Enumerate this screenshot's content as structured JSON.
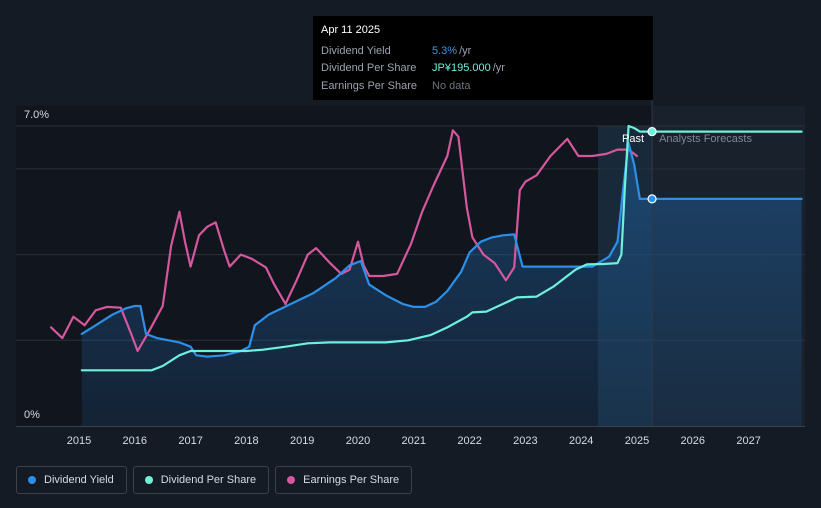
{
  "tooltip": {
    "date": "Apr 11 2025",
    "rows": [
      {
        "label": "Dividend Yield",
        "value": "5.3%",
        "unit": "/yr",
        "color": "#3b9ae8"
      },
      {
        "label": "Dividend Per Share",
        "value": "JP¥195.000",
        "unit": "/yr",
        "color": "#6ff0dc"
      },
      {
        "label": "Earnings Per Share",
        "value": "No data",
        "unit": "",
        "color": "#6b7480"
      }
    ]
  },
  "annotations": {
    "past": "Past",
    "forecast": "Analysts Forecasts"
  },
  "legend": [
    {
      "label": "Dividend Yield",
      "color": "#2d90e8"
    },
    {
      "label": "Dividend Per Share",
      "color": "#6ff0dc"
    },
    {
      "label": "Earnings Per Share",
      "color": "#d5579d"
    }
  ],
  "chart_data": {
    "type": "line",
    "xlim": [
      2014.4,
      2027.95
    ],
    "ylim": [
      0,
      7.0
    ],
    "y_tick_labels": [
      {
        "v": 7.0,
        "label": "7.0%"
      },
      {
        "v": 0,
        "label": "0%"
      }
    ],
    "x_ticks": [
      2015,
      2016,
      2017,
      2018,
      2019,
      2020,
      2021,
      2022,
      2023,
      2024,
      2025,
      2026,
      2027
    ],
    "gridlines": [
      2.0,
      4.0,
      6.0,
      7.0
    ],
    "forecast_start": 2024.3,
    "tooltip_x": 2025.27,
    "series": [
      {
        "name": "Dividend Yield",
        "color": "#2d90e8",
        "points": [
          [
            2015.05,
            2.15
          ],
          [
            2015.3,
            2.35
          ],
          [
            2015.6,
            2.6
          ],
          [
            2015.85,
            2.75
          ],
          [
            2016.0,
            2.8
          ],
          [
            2016.1,
            2.8
          ],
          [
            2016.2,
            2.15
          ],
          [
            2016.4,
            2.05
          ],
          [
            2016.8,
            1.95
          ],
          [
            2017.0,
            1.85
          ],
          [
            2017.1,
            1.65
          ],
          [
            2017.3,
            1.62
          ],
          [
            2017.6,
            1.65
          ],
          [
            2017.9,
            1.75
          ],
          [
            2018.05,
            1.85
          ],
          [
            2018.15,
            2.35
          ],
          [
            2018.4,
            2.6
          ],
          [
            2018.8,
            2.85
          ],
          [
            2019.2,
            3.1
          ],
          [
            2019.6,
            3.45
          ],
          [
            2019.85,
            3.75
          ],
          [
            2020.05,
            3.85
          ],
          [
            2020.2,
            3.3
          ],
          [
            2020.5,
            3.05
          ],
          [
            2020.8,
            2.85
          ],
          [
            2021.0,
            2.78
          ],
          [
            2021.2,
            2.78
          ],
          [
            2021.4,
            2.9
          ],
          [
            2021.6,
            3.15
          ],
          [
            2021.85,
            3.6
          ],
          [
            2022.0,
            4.05
          ],
          [
            2022.2,
            4.3
          ],
          [
            2022.4,
            4.4
          ],
          [
            2022.6,
            4.45
          ],
          [
            2022.8,
            4.47
          ],
          [
            2022.95,
            3.72
          ],
          [
            2023.3,
            3.72
          ],
          [
            2023.8,
            3.72
          ],
          [
            2024.2,
            3.72
          ],
          [
            2024.5,
            3.95
          ],
          [
            2024.65,
            4.3
          ],
          [
            2024.75,
            5.5
          ],
          [
            2024.85,
            6.6
          ],
          [
            2024.95,
            6.1
          ],
          [
            2025.05,
            5.3
          ],
          [
            2025.27,
            5.3
          ],
          [
            2027.95,
            5.3
          ]
        ]
      },
      {
        "name": "Dividend Per Share",
        "color": "#6ff0dc",
        "points": [
          [
            2015.05,
            1.3
          ],
          [
            2016.3,
            1.3
          ],
          [
            2016.5,
            1.4
          ],
          [
            2016.8,
            1.65
          ],
          [
            2017.0,
            1.75
          ],
          [
            2018.0,
            1.75
          ],
          [
            2018.3,
            1.78
          ],
          [
            2018.7,
            1.85
          ],
          [
            2019.1,
            1.93
          ],
          [
            2019.5,
            1.95
          ],
          [
            2020.5,
            1.95
          ],
          [
            2020.9,
            2.0
          ],
          [
            2021.3,
            2.12
          ],
          [
            2021.6,
            2.3
          ],
          [
            2021.95,
            2.55
          ],
          [
            2022.05,
            2.65
          ],
          [
            2022.3,
            2.67
          ],
          [
            2022.6,
            2.85
          ],
          [
            2022.85,
            3.0
          ],
          [
            2023.2,
            3.02
          ],
          [
            2023.5,
            3.25
          ],
          [
            2023.9,
            3.65
          ],
          [
            2024.1,
            3.77
          ],
          [
            2024.4,
            3.78
          ],
          [
            2024.65,
            3.8
          ],
          [
            2024.72,
            4.0
          ],
          [
            2024.78,
            5.5
          ],
          [
            2024.85,
            7.0
          ],
          [
            2024.95,
            6.95
          ],
          [
            2025.05,
            6.87
          ],
          [
            2025.27,
            6.87
          ],
          [
            2027.95,
            6.87
          ]
        ]
      },
      {
        "name": "Earnings Per Share",
        "color": "#d5579d",
        "points": [
          [
            2014.5,
            2.3
          ],
          [
            2014.7,
            2.05
          ],
          [
            2014.9,
            2.55
          ],
          [
            2015.1,
            2.35
          ],
          [
            2015.3,
            2.7
          ],
          [
            2015.5,
            2.78
          ],
          [
            2015.75,
            2.76
          ],
          [
            2015.95,
            2.1
          ],
          [
            2016.05,
            1.75
          ],
          [
            2016.25,
            2.2
          ],
          [
            2016.5,
            2.8
          ],
          [
            2016.65,
            4.2
          ],
          [
            2016.8,
            5.0
          ],
          [
            2016.9,
            4.3
          ],
          [
            2017.0,
            3.72
          ],
          [
            2017.15,
            4.45
          ],
          [
            2017.3,
            4.65
          ],
          [
            2017.45,
            4.75
          ],
          [
            2017.6,
            4.1
          ],
          [
            2017.7,
            3.72
          ],
          [
            2017.9,
            4.0
          ],
          [
            2018.1,
            3.9
          ],
          [
            2018.35,
            3.7
          ],
          [
            2018.5,
            3.3
          ],
          [
            2018.7,
            2.85
          ],
          [
            2018.9,
            3.4
          ],
          [
            2019.1,
            4.0
          ],
          [
            2019.25,
            4.15
          ],
          [
            2019.5,
            3.8
          ],
          [
            2019.7,
            3.55
          ],
          [
            2019.85,
            3.65
          ],
          [
            2020.0,
            4.3
          ],
          [
            2020.1,
            3.75
          ],
          [
            2020.2,
            3.5
          ],
          [
            2020.45,
            3.5
          ],
          [
            2020.7,
            3.55
          ],
          [
            2020.95,
            4.25
          ],
          [
            2021.15,
            5.0
          ],
          [
            2021.35,
            5.6
          ],
          [
            2021.6,
            6.3
          ],
          [
            2021.7,
            6.9
          ],
          [
            2021.8,
            6.75
          ],
          [
            2021.95,
            5.1
          ],
          [
            2022.05,
            4.4
          ],
          [
            2022.25,
            4.0
          ],
          [
            2022.45,
            3.8
          ],
          [
            2022.65,
            3.4
          ],
          [
            2022.8,
            3.7
          ],
          [
            2022.9,
            5.5
          ],
          [
            2023.0,
            5.7
          ],
          [
            2023.2,
            5.85
          ],
          [
            2023.45,
            6.3
          ],
          [
            2023.75,
            6.7
          ],
          [
            2023.95,
            6.3
          ],
          [
            2024.2,
            6.3
          ],
          [
            2024.45,
            6.35
          ],
          [
            2024.65,
            6.45
          ],
          [
            2024.85,
            6.45
          ],
          [
            2025.0,
            6.3
          ]
        ]
      }
    ],
    "area_series": "Dividend Yield",
    "markers": [
      {
        "series": "Dividend Per Share",
        "x": 2025.27,
        "y": 6.87
      },
      {
        "series": "Dividend Yield",
        "x": 2025.27,
        "y": 5.3
      }
    ]
  }
}
